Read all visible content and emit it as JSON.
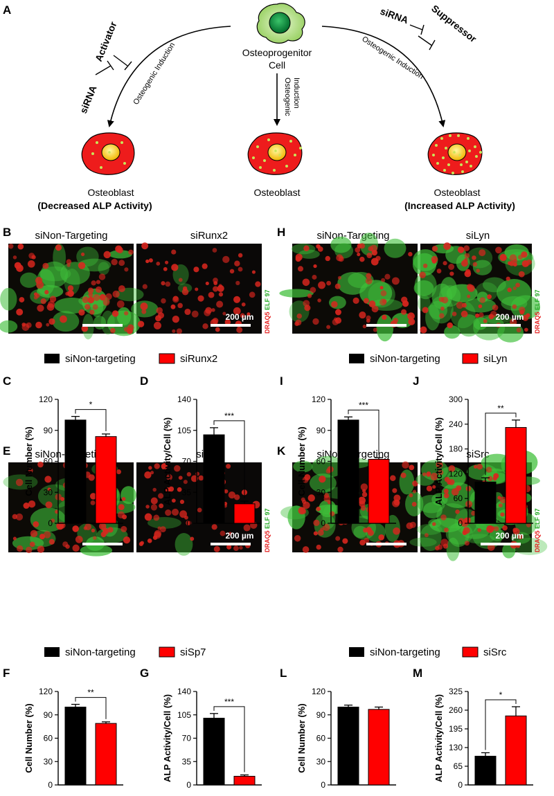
{
  "panel_labels": {
    "A": "A",
    "B": "B",
    "C": "C",
    "D": "D",
    "E": "E",
    "F": "F",
    "G": "G",
    "H": "H",
    "I": "I",
    "J": "J",
    "K": "K",
    "L": "L",
    "M": "M"
  },
  "schematic": {
    "progenitor_label_line1": "Osteoprogenitor",
    "progenitor_label_line2": "Cell",
    "induction_label": "Osteogenic Induction",
    "induction_mid_line1": "Osteogenic",
    "induction_mid_line2": "Induction",
    "activator": "Activator",
    "suppressor": "Suppressor",
    "sirna": "siRNA",
    "osteoblast": "Osteoblast",
    "decreased": "(Decreased ALP Activity)",
    "increased": "(Increased ALP Activity)"
  },
  "images": {
    "non_targeting_title": "siNon-Targeting",
    "scale_bar": "200 µm",
    "stain_red": "DRAQ5",
    "stain_green": "ELF 97",
    "B_knockdown": "siRunx2",
    "E_knockdown": "siSp7",
    "H_knockdown": "siLyn",
    "K_knockdown": "siSrc"
  },
  "legends": {
    "control": "siNon-targeting",
    "runx2": "siRunx2",
    "sp7": "siSp7",
    "lyn": "siLyn",
    "src": "siSrc"
  },
  "colors": {
    "control": "#000000",
    "knockdown": "#ff0000"
  },
  "chart_data": [
    {
      "panel": "C",
      "type": "bar",
      "categories": [
        "siNon-targeting",
        "siRunx2"
      ],
      "values": [
        100,
        84
      ],
      "errors": [
        3.5,
        2.5
      ],
      "ylabel": "Cell Number (%)",
      "ylim": [
        0,
        120
      ],
      "yticks": [
        0,
        30,
        60,
        90,
        120
      ],
      "significance": "*"
    },
    {
      "panel": "D",
      "type": "bar",
      "categories": [
        "siNon-targeting",
        "siRunx2"
      ],
      "values": [
        100,
        22
      ],
      "errors": [
        8,
        3
      ],
      "ylabel": "ALP Activity/Cell (%)",
      "ylim": [
        0,
        140
      ],
      "yticks": [
        0,
        35,
        70,
        105,
        140
      ],
      "significance": "***"
    },
    {
      "panel": "F",
      "type": "bar",
      "categories": [
        "siNon-targeting",
        "siSp7"
      ],
      "values": [
        100,
        79
      ],
      "errors": [
        3.5,
        2
      ],
      "ylabel": "Cell Number (%)",
      "ylim": [
        0,
        120
      ],
      "yticks": [
        0,
        30,
        60,
        90,
        120
      ],
      "significance": "**"
    },
    {
      "panel": "G",
      "type": "bar",
      "categories": [
        "siNon-targeting",
        "siSp7"
      ],
      "values": [
        100,
        13
      ],
      "errors": [
        7,
        2
      ],
      "ylabel": "ALP Activity/Cell (%)",
      "ylim": [
        0,
        140
      ],
      "yticks": [
        0,
        35,
        70,
        105,
        140
      ],
      "significance": "***"
    },
    {
      "panel": "I",
      "type": "bar",
      "categories": [
        "siNon-targeting",
        "siLyn"
      ],
      "values": [
        100,
        62
      ],
      "errors": [
        3,
        1.5
      ],
      "ylabel": "Cell Number (%)",
      "ylim": [
        0,
        120
      ],
      "yticks": [
        0,
        30,
        60,
        90,
        120
      ],
      "significance": "***"
    },
    {
      "panel": "J",
      "type": "bar",
      "categories": [
        "siNon-targeting",
        "siLyn"
      ],
      "values": [
        100,
        232
      ],
      "errors": [
        10,
        18
      ],
      "ylabel": "ALP Activity/Cell (%)",
      "ylim": [
        0,
        300
      ],
      "yticks": [
        0,
        60,
        120,
        180,
        240,
        300
      ],
      "significance": "**"
    },
    {
      "panel": "L",
      "type": "bar",
      "categories": [
        "siNon-targeting",
        "siSrc"
      ],
      "values": [
        100,
        97
      ],
      "errors": [
        2.5,
        3
      ],
      "ylabel": "Cell Number (%)",
      "ylim": [
        0,
        120
      ],
      "yticks": [
        0,
        30,
        60,
        90,
        120
      ],
      "significance": ""
    },
    {
      "panel": "M",
      "type": "bar",
      "categories": [
        "siNon-targeting",
        "siSrc"
      ],
      "values": [
        100,
        240
      ],
      "errors": [
        12,
        32
      ],
      "ylabel": "ALP Activity/Cell (%)",
      "ylim": [
        0,
        325
      ],
      "yticks": [
        0,
        65,
        130,
        195,
        260,
        325
      ],
      "significance": "*"
    }
  ]
}
